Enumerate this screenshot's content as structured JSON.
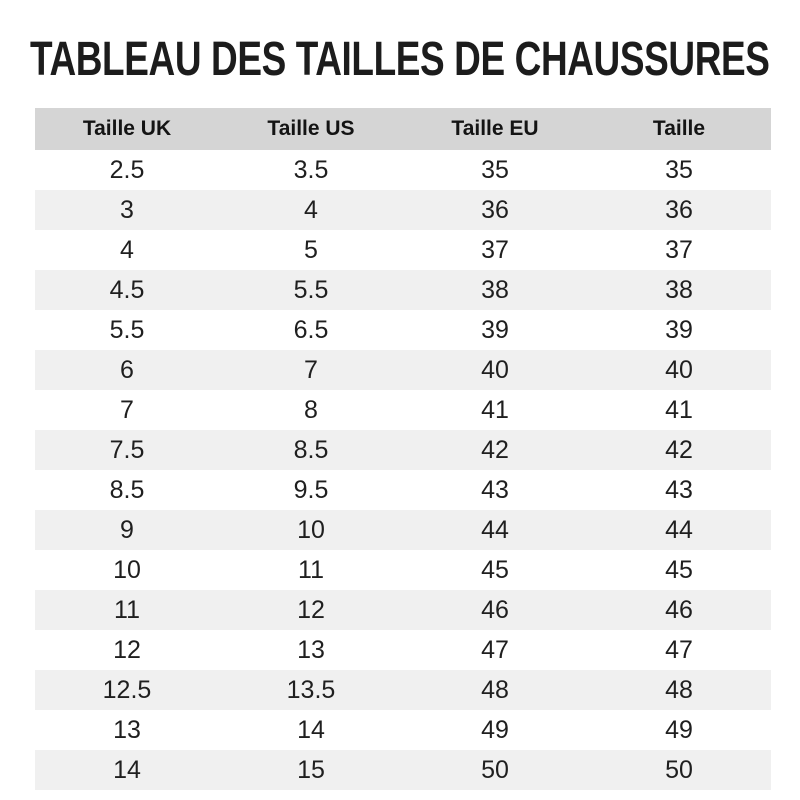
{
  "title": "TABLEAU DES TAILLES DE CHAUSSURES",
  "colors": {
    "header_bg": "#d5d5d5",
    "stripe_bg": "#f0f0f0",
    "cell_text": "#1f1f1f",
    "header_text": "#141414",
    "title_text": "#1c1c1c",
    "page_bg": "#ffffff"
  },
  "chart_data": {
    "type": "table",
    "title": "TABLEAU DES TAILLES DE CHAUSSURES",
    "columns": [
      "Taille UK",
      "Taille US",
      "Taille EU",
      "Taille"
    ],
    "rows": [
      [
        "2.5",
        "3.5",
        "35",
        "35"
      ],
      [
        "3",
        "4",
        "36",
        "36"
      ],
      [
        "4",
        "5",
        "37",
        "37"
      ],
      [
        "4.5",
        "5.5",
        "38",
        "38"
      ],
      [
        "5.5",
        "6.5",
        "39",
        "39"
      ],
      [
        "6",
        "7",
        "40",
        "40"
      ],
      [
        "7",
        "8",
        "41",
        "41"
      ],
      [
        "7.5",
        "8.5",
        "42",
        "42"
      ],
      [
        "8.5",
        "9.5",
        "43",
        "43"
      ],
      [
        "9",
        "10",
        "44",
        "44"
      ],
      [
        "10",
        "11",
        "45",
        "45"
      ],
      [
        "11",
        "12",
        "46",
        "46"
      ],
      [
        "12",
        "13",
        "47",
        "47"
      ],
      [
        "12.5",
        "13.5",
        "48",
        "48"
      ],
      [
        "13",
        "14",
        "49",
        "49"
      ],
      [
        "14",
        "15",
        "50",
        "50"
      ]
    ],
    "layout": {
      "header_background": "#d5d5d5",
      "zebra_striping": "odd rows white, even rows #f0f0f0",
      "grid": "off",
      "column_alignment": "center"
    }
  }
}
